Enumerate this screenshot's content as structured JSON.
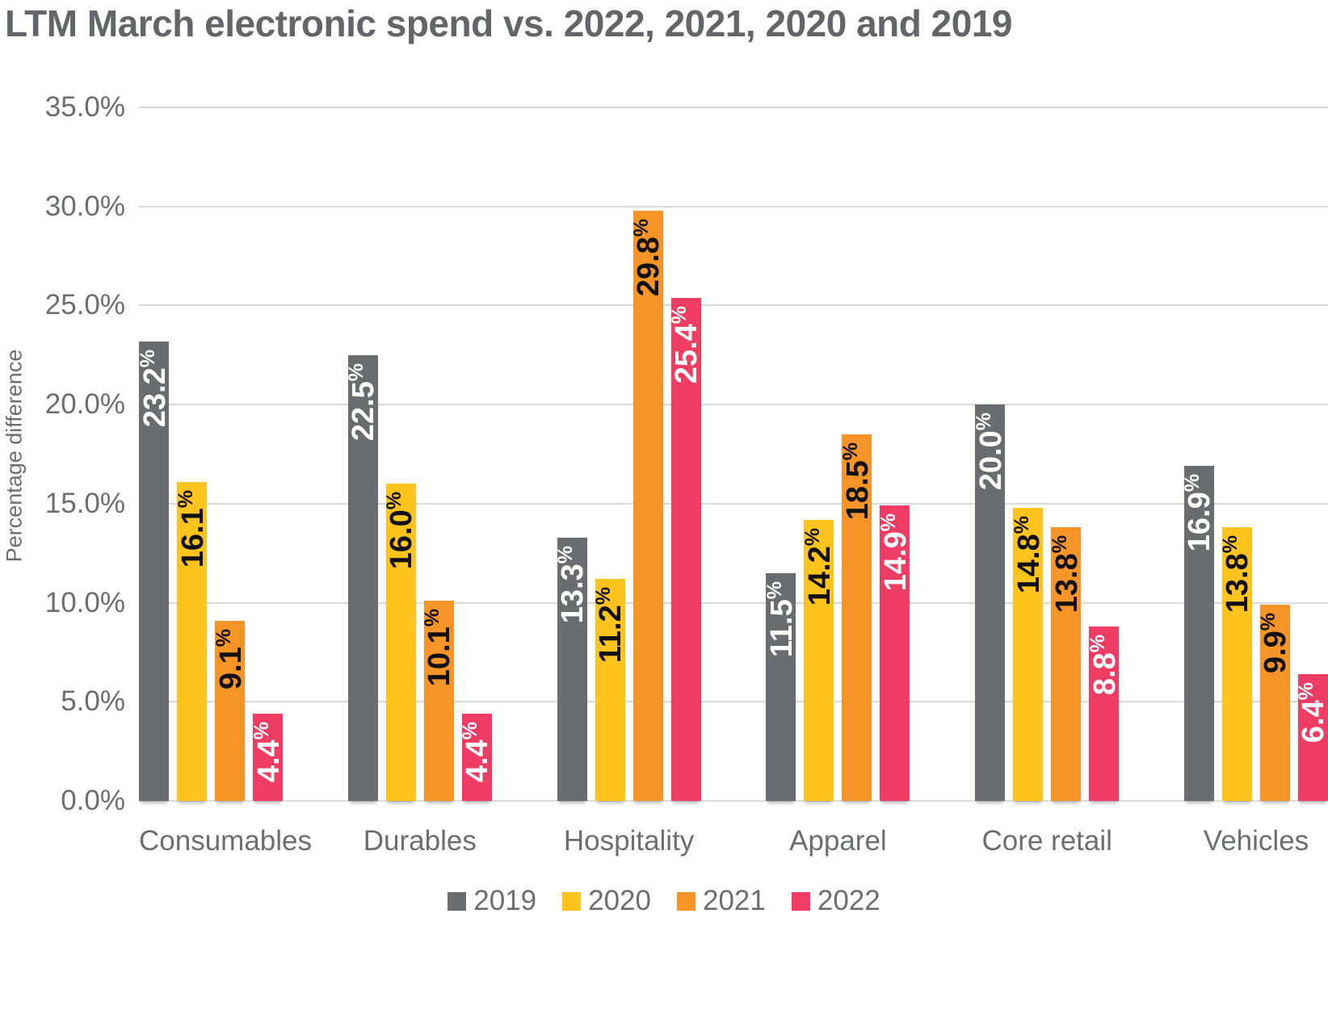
{
  "page": {
    "background": "#FFFFFF"
  },
  "colors": {
    "title_text": "#646568",
    "axis_text": "#6D6E71",
    "gridline": "#D9DADB"
  },
  "chart_data": {
    "type": "bar",
    "title": "LTM March electronic spend vs. 2022, 2021, 2020 and 2019",
    "ylabel": "Percentage difference",
    "xlabel": "",
    "ylim": [
      0,
      35
    ],
    "y_tick_step": 5,
    "y_ticks": [
      "0.0%",
      "5.0%",
      "10.0%",
      "15.0%",
      "20.0%",
      "25.0%",
      "30.0%",
      "35.0%"
    ],
    "grid": true,
    "legend_position": "bottom",
    "value_label_suffix": "%",
    "value_label_decimals": 1,
    "categories": [
      "Consumables",
      "Durables",
      "Hospitality",
      "Apparel",
      "Core retail",
      "Vehicles"
    ],
    "series": [
      {
        "name": "2019",
        "color": "#6B6C6F",
        "label_color": "#FFFFFF",
        "values": [
          23.2,
          22.5,
          13.3,
          11.5,
          20.0,
          16.9
        ]
      },
      {
        "name": "2020",
        "color": "#FFC31E",
        "label_color": "#111111",
        "values": [
          16.1,
          16.0,
          11.2,
          14.2,
          14.8,
          13.8
        ]
      },
      {
        "name": "2021",
        "color": "#F79428",
        "label_color": "#111111",
        "values": [
          9.1,
          10.1,
          29.8,
          18.5,
          13.8,
          9.9
        ]
      },
      {
        "name": "2022",
        "color": "#EE3C64",
        "label_color": "#FFFFFF",
        "values": [
          4.4,
          4.4,
          25.4,
          14.9,
          8.8,
          6.4
        ]
      }
    ]
  }
}
